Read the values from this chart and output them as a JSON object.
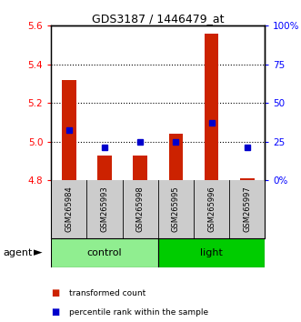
{
  "title": "GDS3187 / 1446479_at",
  "samples": [
    "GSM265984",
    "GSM265993",
    "GSM265998",
    "GSM265995",
    "GSM265996",
    "GSM265997"
  ],
  "red_values": [
    5.32,
    4.93,
    4.93,
    5.04,
    5.56,
    4.81
  ],
  "blue_values_left": [
    5.06,
    4.97,
    5.0,
    5.0,
    5.1,
    4.97
  ],
  "y_min": 4.8,
  "y_max": 5.6,
  "y_ticks": [
    4.8,
    5.0,
    5.2,
    5.4,
    5.6
  ],
  "right_y_ticks": [
    0,
    25,
    50,
    75,
    100
  ],
  "right_y_labels": [
    "0%",
    "25",
    "50",
    "75",
    "100%"
  ],
  "groups": [
    {
      "label": "control",
      "start": 0,
      "end": 3,
      "color": "#90EE90"
    },
    {
      "label": "light",
      "start": 3,
      "end": 6,
      "color": "#00CC00"
    }
  ],
  "bar_color": "#CC2200",
  "dot_color": "#0000CC",
  "label_bg_color": "#CCCCCC",
  "agent_label": "agent",
  "legend_items": [
    {
      "color": "#CC2200",
      "label": "transformed count"
    },
    {
      "color": "#0000CC",
      "label": "percentile rank within the sample"
    }
  ]
}
